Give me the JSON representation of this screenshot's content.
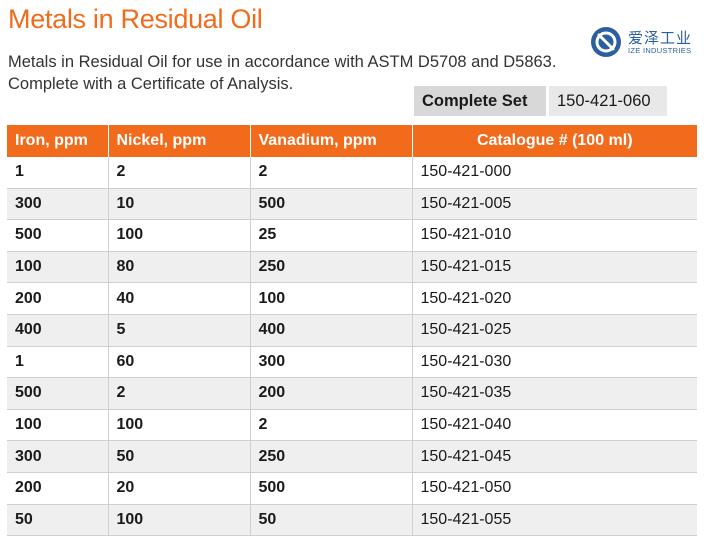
{
  "title": "Metals in Residual Oil",
  "description_line1": "Metals in Residual Oil for use in accordance with ASTM D5708 and D5863.",
  "description_line2": "Complete with a Certificate of Analysis.",
  "logo": {
    "chinese": "爱泽工业",
    "english": "IZE INDUSTRIES",
    "brand_color": "#2b5f9e"
  },
  "complete_set": {
    "label": "Complete Set",
    "value": "150-421-060"
  },
  "accent_color": "#f26b1d",
  "table": {
    "headers": [
      "Iron, ppm",
      "Nickel, ppm",
      "Vanadium, ppm",
      "Catalogue # (100 ml)"
    ],
    "rows": [
      [
        "1",
        "2",
        "2",
        "150-421-000"
      ],
      [
        "300",
        "10",
        "500",
        "150-421-005"
      ],
      [
        "500",
        "100",
        "25",
        "150-421-010"
      ],
      [
        "100",
        "80",
        "250",
        "150-421-015"
      ],
      [
        "200",
        "40",
        "100",
        "150-421-020"
      ],
      [
        "400",
        "5",
        "400",
        "150-421-025"
      ],
      [
        "1",
        "60",
        "300",
        "150-421-030"
      ],
      [
        "500",
        "2",
        "200",
        "150-421-035"
      ],
      [
        "100",
        "100",
        "2",
        "150-421-040"
      ],
      [
        "300",
        "50",
        "250",
        "150-421-045"
      ],
      [
        "200",
        "20",
        "500",
        "150-421-050"
      ],
      [
        "50",
        "100",
        "50",
        "150-421-055"
      ]
    ]
  }
}
